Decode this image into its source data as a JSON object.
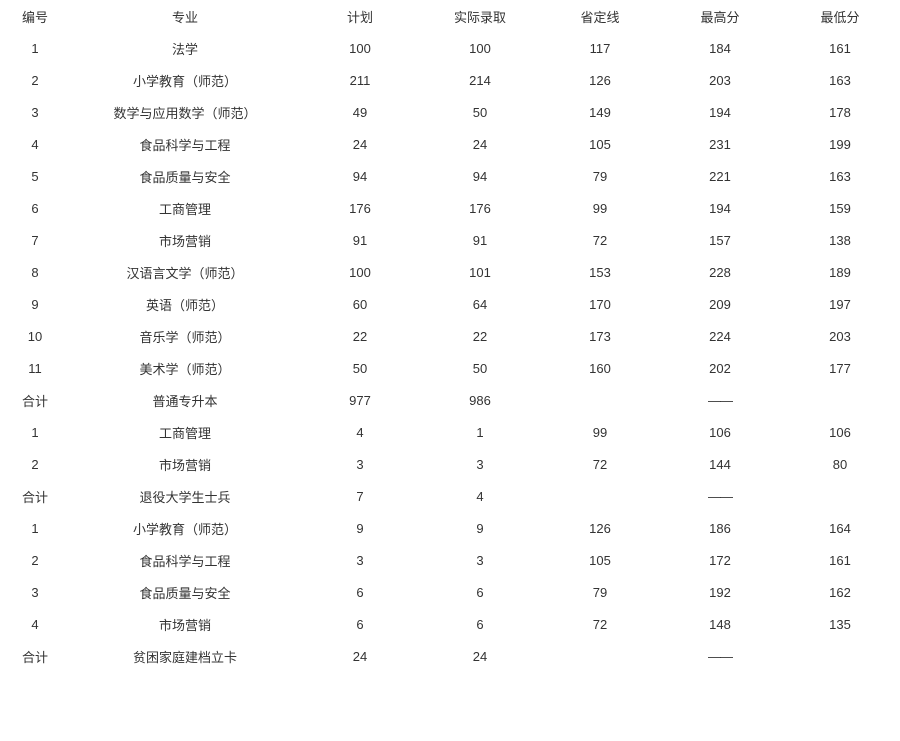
{
  "headers": {
    "id": "编号",
    "major": "专业",
    "plan": "计划",
    "actual": "实际录取",
    "line": "省定线",
    "max": "最高分",
    "min": "最低分"
  },
  "rows": [
    {
      "id": "1",
      "major": "法学",
      "plan": "100",
      "actual": "100",
      "line": "117",
      "max": "184",
      "min": "161"
    },
    {
      "id": "2",
      "major": "小学教育（师范）",
      "plan": "211",
      "actual": "214",
      "line": "126",
      "max": "203",
      "min": "163"
    },
    {
      "id": "3",
      "major": "数学与应用数学（师范）",
      "plan": "49",
      "actual": "50",
      "line": "149",
      "max": "194",
      "min": "178"
    },
    {
      "id": "4",
      "major": "食品科学与工程",
      "plan": "24",
      "actual": "24",
      "line": "105",
      "max": "231",
      "min": "199"
    },
    {
      "id": "5",
      "major": "食品质量与安全",
      "plan": "94",
      "actual": "94",
      "line": "79",
      "max": "221",
      "min": "163"
    },
    {
      "id": "6",
      "major": "工商管理",
      "plan": "176",
      "actual": "176",
      "line": "99",
      "max": "194",
      "min": "159"
    },
    {
      "id": "7",
      "major": "市场营销",
      "plan": "91",
      "actual": "91",
      "line": "72",
      "max": "157",
      "min": "138"
    },
    {
      "id": "8",
      "major": "汉语言文学（师范）",
      "plan": "100",
      "actual": "101",
      "line": "153",
      "max": "228",
      "min": "189"
    },
    {
      "id": "9",
      "major": "英语（师范）",
      "plan": "60",
      "actual": "64",
      "line": "170",
      "max": "209",
      "min": "197"
    },
    {
      "id": "10",
      "major": "音乐学（师范）",
      "plan": "22",
      "actual": "22",
      "line": "173",
      "max": "224",
      "min": "203"
    },
    {
      "id": "11",
      "major": "美术学（师范）",
      "plan": "50",
      "actual": "50",
      "line": "160",
      "max": "202",
      "min": "177"
    },
    {
      "id": "合计",
      "major": "普通专升本",
      "plan": "977",
      "actual": "986",
      "line": "",
      "max": "——",
      "min": ""
    },
    {
      "id": "1",
      "major": "工商管理",
      "plan": "4",
      "actual": "1",
      "line": "99",
      "max": "106",
      "min": "106"
    },
    {
      "id": "2",
      "major": "市场营销",
      "plan": "3",
      "actual": "3",
      "line": "72",
      "max": "144",
      "min": "80"
    },
    {
      "id": "合计",
      "major": "退役大学生士兵",
      "plan": "7",
      "actual": "4",
      "line": "",
      "max": "——",
      "min": ""
    },
    {
      "id": "1",
      "major": "小学教育（师范）",
      "plan": "9",
      "actual": "9",
      "line": "126",
      "max": "186",
      "min": "164"
    },
    {
      "id": "2",
      "major": "食品科学与工程",
      "plan": "3",
      "actual": "3",
      "line": "105",
      "max": "172",
      "min": "161"
    },
    {
      "id": "3",
      "major": "食品质量与安全",
      "plan": "6",
      "actual": "6",
      "line": "79",
      "max": "192",
      "min": "162"
    },
    {
      "id": "4",
      "major": "市场营销",
      "plan": "6",
      "actual": "6",
      "line": "72",
      "max": "148",
      "min": "135"
    },
    {
      "id": "合计",
      "major": "贫困家庭建档立卡",
      "plan": "24",
      "actual": "24",
      "line": "",
      "max": "——",
      "min": ""
    }
  ]
}
